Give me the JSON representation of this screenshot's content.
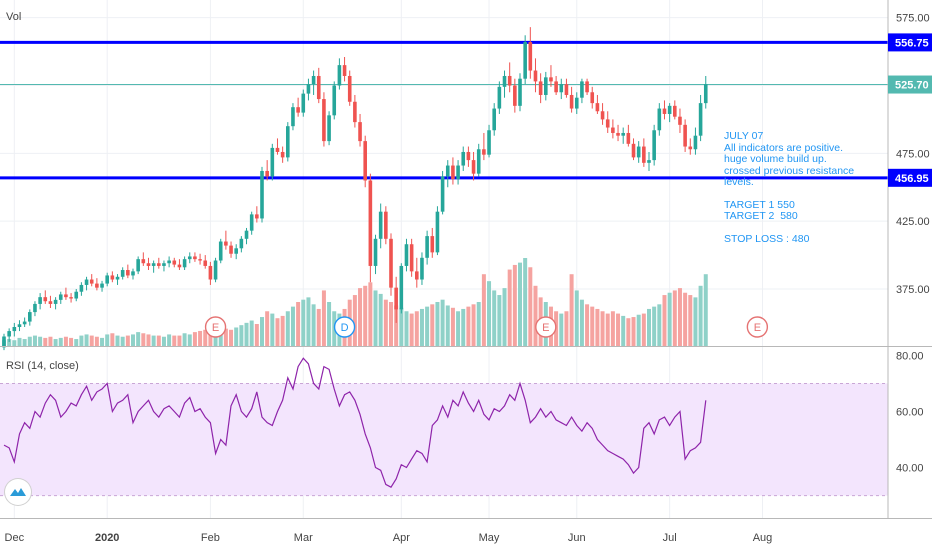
{
  "colors": {
    "up": "#26a69a",
    "down": "#ef5350",
    "vol_up": "#8fd1c8",
    "vol_down": "#f5a3a0",
    "level_line": "#0000ff",
    "price_line": "#53b9b0",
    "rsi_line": "#8e24aa",
    "rsi_band": "#f3e5fd",
    "note_text": "#2196f3",
    "axis_text": "#444444",
    "grid": "#eef0f4"
  },
  "chart_data": {
    "type": "candlestick",
    "main": {
      "label": "Vol",
      "ylim": [
        333,
        588
      ],
      "yticks": [
        "575.00",
        "525.00",
        "475.00",
        "425.00",
        "375.00"
      ],
      "ytick_values": [
        575,
        525,
        475,
        425,
        375
      ],
      "levels": [
        {
          "value": 556.75,
          "label": "556.75",
          "kind": "drawn_line"
        },
        {
          "value": 456.95,
          "label": "456.95",
          "kind": "drawn_line"
        },
        {
          "value": 525.7,
          "label": "525.70",
          "kind": "last_price"
        }
      ],
      "candles": [
        [
          332,
          342,
          330,
          340
        ],
        [
          340,
          346,
          336,
          344
        ],
        [
          344,
          350,
          340,
          347
        ],
        [
          347,
          352,
          344,
          349
        ],
        [
          349,
          354,
          347,
          351
        ],
        [
          351,
          360,
          348,
          358
        ],
        [
          358,
          366,
          355,
          364
        ],
        [
          364,
          372,
          360,
          369
        ],
        [
          369,
          374,
          364,
          366
        ],
        [
          366,
          370,
          361,
          364
        ],
        [
          364,
          369,
          360,
          367
        ],
        [
          367,
          373,
          364,
          371
        ],
        [
          371,
          376,
          367,
          369
        ],
        [
          369,
          372,
          365,
          368
        ],
        [
          368,
          375,
          366,
          373
        ],
        [
          373,
          380,
          370,
          378
        ],
        [
          378,
          384,
          374,
          382
        ],
        [
          382,
          386,
          377,
          379
        ],
        [
          379,
          383,
          374,
          376
        ],
        [
          376,
          381,
          373,
          379
        ],
        [
          379,
          387,
          377,
          385
        ],
        [
          385,
          388,
          380,
          382
        ],
        [
          382,
          386,
          378,
          384
        ],
        [
          384,
          391,
          382,
          389
        ],
        [
          389,
          393,
          383,
          385
        ],
        [
          385,
          390,
          382,
          388
        ],
        [
          388,
          399,
          386,
          397
        ],
        [
          397,
          402,
          392,
          394
        ],
        [
          394,
          398,
          389,
          392
        ],
        [
          392,
          396,
          387,
          394
        ],
        [
          394,
          398,
          390,
          392
        ],
        [
          392,
          396,
          388,
          394
        ],
        [
          394,
          399,
          391,
          396
        ],
        [
          396,
          398,
          391,
          393
        ],
        [
          393,
          397,
          389,
          391
        ],
        [
          391,
          399,
          389,
          397
        ],
        [
          397,
          402,
          394,
          399
        ],
        [
          399,
          402,
          395,
          397
        ],
        [
          397,
          401,
          393,
          396
        ],
        [
          396,
          400,
          390,
          392
        ],
        [
          392,
          395,
          378,
          382
        ],
        [
          382,
          398,
          380,
          396
        ],
        [
          396,
          412,
          394,
          410
        ],
        [
          410,
          418,
          404,
          407
        ],
        [
          407,
          410,
          398,
          401
        ],
        [
          401,
          408,
          397,
          405
        ],
        [
          405,
          414,
          402,
          412
        ],
        [
          412,
          420,
          408,
          418
        ],
        [
          418,
          432,
          415,
          430
        ],
        [
          430,
          436,
          424,
          427
        ],
        [
          427,
          465,
          424,
          462
        ],
        [
          462,
          470,
          455,
          458
        ],
        [
          458,
          482,
          455,
          479
        ],
        [
          479,
          486,
          474,
          476
        ],
        [
          476,
          480,
          468,
          472
        ],
        [
          472,
          498,
          469,
          495
        ],
        [
          495,
          512,
          492,
          509
        ],
        [
          509,
          516,
          502,
          505
        ],
        [
          505,
          522,
          502,
          519
        ],
        [
          519,
          530,
          514,
          526
        ],
        [
          526,
          536,
          518,
          532
        ],
        [
          532,
          538,
          512,
          515
        ],
        [
          515,
          520,
          480,
          484
        ],
        [
          484,
          506,
          481,
          503
        ],
        [
          503,
          528,
          500,
          525
        ],
        [
          525,
          545,
          522,
          540
        ],
        [
          540,
          546,
          528,
          532
        ],
        [
          532,
          536,
          510,
          513
        ],
        [
          513,
          518,
          494,
          498
        ],
        [
          498,
          504,
          480,
          484
        ],
        [
          484,
          488,
          450,
          455
        ],
        [
          455,
          460,
          380,
          392
        ],
        [
          392,
          415,
          386,
          412
        ],
        [
          412,
          438,
          405,
          432
        ],
        [
          432,
          436,
          408,
          412
        ],
        [
          412,
          416,
          370,
          376
        ],
        [
          376,
          384,
          350,
          360
        ],
        [
          360,
          394,
          357,
          392
        ],
        [
          392,
          412,
          388,
          408
        ],
        [
          408,
          412,
          384,
          388
        ],
        [
          388,
          398,
          376,
          382
        ],
        [
          382,
          402,
          378,
          398
        ],
        [
          398,
          418,
          393,
          414
        ],
        [
          414,
          420,
          398,
          402
        ],
        [
          402,
          436,
          400,
          432
        ],
        [
          432,
          462,
          430,
          458
        ],
        [
          458,
          470,
          450,
          466
        ],
        [
          466,
          472,
          452,
          456
        ],
        [
          456,
          470,
          452,
          466
        ],
        [
          466,
          480,
          462,
          476
        ],
        [
          476,
          480,
          465,
          470
        ],
        [
          470,
          476,
          455,
          460
        ],
        [
          460,
          482,
          458,
          478
        ],
        [
          478,
          490,
          470,
          474
        ],
        [
          474,
          496,
          472,
          492
        ],
        [
          492,
          512,
          488,
          508
        ],
        [
          508,
          528,
          504,
          524
        ],
        [
          524,
          536,
          516,
          532
        ],
        [
          532,
          542,
          520,
          525
        ],
        [
          525,
          530,
          505,
          510
        ],
        [
          510,
          534,
          506,
          530
        ],
        [
          530,
          562,
          526,
          557
        ],
        [
          557,
          568,
          530,
          536
        ],
        [
          536,
          545,
          520,
          528
        ],
        [
          528,
          534,
          512,
          518
        ],
        [
          518,
          535,
          514,
          531
        ],
        [
          531,
          540,
          524,
          528
        ],
        [
          528,
          532,
          518,
          520
        ],
        [
          520,
          530,
          515,
          526
        ],
        [
          526,
          530,
          516,
          518
        ],
        [
          518,
          524,
          505,
          508
        ],
        [
          508,
          520,
          504,
          516
        ],
        [
          516,
          530,
          512,
          528
        ],
        [
          528,
          530,
          518,
          520
        ],
        [
          520,
          524,
          508,
          512
        ],
        [
          512,
          518,
          504,
          506
        ],
        [
          506,
          512,
          496,
          500
        ],
        [
          500,
          506,
          490,
          494
        ],
        [
          494,
          500,
          486,
          490
        ],
        [
          490,
          496,
          484,
          488
        ],
        [
          488,
          494,
          482,
          490
        ],
        [
          490,
          496,
          480,
          482
        ],
        [
          482,
          486,
          470,
          472
        ],
        [
          472,
          484,
          468,
          480
        ],
        [
          480,
          486,
          465,
          468
        ],
        [
          468,
          476,
          462,
          470
        ],
        [
          470,
          496,
          466,
          492
        ],
        [
          492,
          512,
          488,
          508
        ],
        [
          508,
          514,
          500,
          504
        ],
        [
          504,
          512,
          498,
          510
        ],
        [
          510,
          514,
          500,
          502
        ],
        [
          502,
          508,
          490,
          496
        ],
        [
          496,
          500,
          476,
          480
        ],
        [
          480,
          486,
          474,
          478
        ],
        [
          478,
          494,
          474,
          488
        ],
        [
          488,
          518,
          484,
          512
        ],
        [
          512,
          532,
          508,
          526
        ]
      ],
      "volume": [
        5,
        6,
        5,
        7,
        6,
        8,
        9,
        8,
        7,
        8,
        6,
        7,
        8,
        7,
        6,
        9,
        10,
        9,
        8,
        7,
        10,
        11,
        9,
        8,
        9,
        10,
        12,
        11,
        10,
        9,
        9,
        8,
        10,
        9,
        9,
        11,
        10,
        12,
        13,
        14,
        12,
        11,
        13,
        15,
        14,
        16,
        18,
        20,
        22,
        19,
        25,
        30,
        28,
        24,
        26,
        30,
        34,
        38,
        40,
        42,
        36,
        32,
        48,
        38,
        30,
        28,
        32,
        40,
        44,
        50,
        52,
        55,
        48,
        45,
        40,
        38,
        35,
        33,
        30,
        28,
        30,
        32,
        34,
        36,
        38,
        40,
        35,
        33,
        30,
        32,
        34,
        36,
        38,
        62,
        56,
        48,
        44,
        50,
        66,
        70,
        72,
        76,
        68,
        52,
        42,
        38,
        34,
        30,
        28,
        30,
        62,
        48,
        40,
        36,
        34,
        32,
        30,
        28,
        30,
        28,
        26,
        24,
        25,
        27,
        28,
        32,
        34,
        36,
        44,
        46,
        48,
        50,
        46,
        44,
        42,
        52,
        62
      ]
    },
    "rsi": {
      "label": "RSI (14, close)",
      "ylim": [
        22,
        83
      ],
      "band": [
        30,
        70
      ],
      "yticks": [
        "80.00",
        "60.00",
        "40.00"
      ],
      "ytick_values": [
        80,
        60,
        40
      ],
      "values": [
        48,
        47,
        42,
        52,
        56,
        54,
        60,
        58,
        63,
        66,
        64,
        58,
        60,
        63,
        62,
        66,
        69,
        64,
        67,
        68,
        70,
        60,
        63,
        64,
        66,
        56,
        60,
        62,
        64,
        60,
        58,
        61,
        62,
        60,
        58,
        63,
        65,
        60,
        61,
        58,
        56,
        45,
        50,
        48,
        62,
        66,
        60,
        58,
        61,
        67,
        58,
        56,
        55,
        60,
        64,
        72,
        68,
        76,
        79,
        77,
        70,
        68,
        76,
        75,
        68,
        62,
        66,
        67,
        64,
        59,
        52,
        47,
        40,
        39,
        34,
        33,
        36,
        41,
        40,
        43,
        46,
        45,
        42,
        55,
        57,
        62,
        58,
        64,
        62,
        67,
        63,
        60,
        64,
        59,
        57,
        61,
        60,
        62,
        66,
        64,
        70,
        64,
        56,
        58,
        61,
        58,
        60,
        57,
        56,
        55,
        58,
        55,
        53,
        56,
        54,
        50,
        48,
        46,
        45,
        44,
        43,
        41,
        38,
        40,
        54,
        56,
        52,
        57,
        58,
        55,
        58,
        60,
        43,
        46,
        47,
        49,
        64
      ]
    },
    "x_axis": {
      "ticks": [
        "Dec",
        "2020",
        "Feb",
        "Mar",
        "Apr",
        "May",
        "Jun",
        "Jul",
        "Aug"
      ],
      "tick_index": [
        2,
        20,
        40,
        58,
        77,
        94,
        111,
        129,
        147
      ]
    },
    "events": [
      {
        "label": "E",
        "index": 41,
        "style": "earnings"
      },
      {
        "label": "D",
        "index": 66,
        "style": "dividend"
      },
      {
        "label": "E",
        "index": 105,
        "style": "earnings"
      },
      {
        "label": "E",
        "index": 146,
        "style": "earnings"
      }
    ]
  },
  "annotation": {
    "lines": [
      "JULY 07",
      "All indicators are positive.",
      "huge volume build up.",
      "crossed previous resistance",
      "levels.",
      "",
      "TARGET 1 550",
      "TARGET 2  580",
      "",
      "STOP LOSS : 480"
    ]
  },
  "icons": {
    "logo": "tradingview-logo-icon"
  }
}
